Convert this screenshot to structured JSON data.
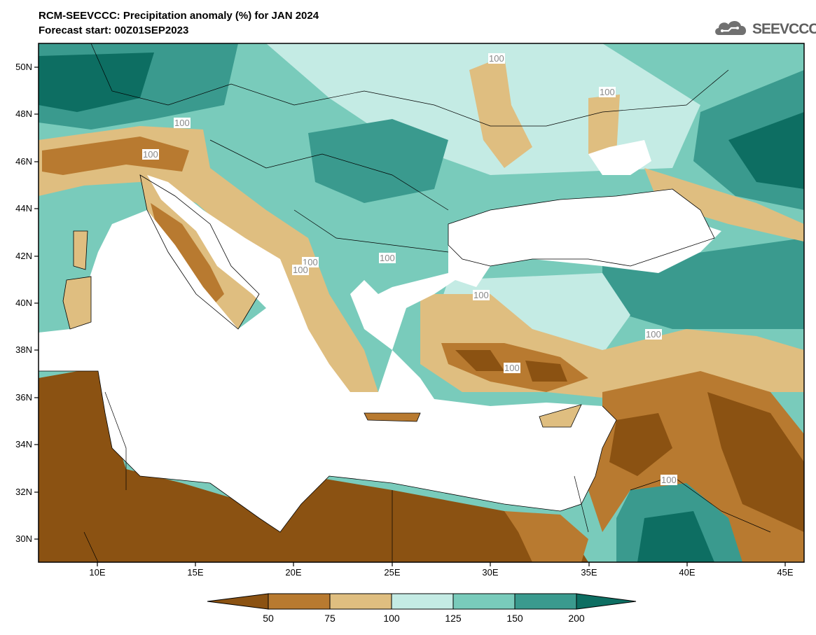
{
  "header": {
    "line1": "RCM-SEEVCCC: Precipitation anomaly (%) for JAN 2024",
    "line2": "Forecast start: 00Z01SEP2023"
  },
  "logo": {
    "text": "SEEVCCC",
    "icon": "cloud-logo-icon"
  },
  "map": {
    "lat_labels": [
      "50N",
      "48N",
      "46N",
      "44N",
      "42N",
      "40N",
      "38N",
      "36N",
      "34N",
      "32N",
      "30N"
    ],
    "lon_labels": [
      "10E",
      "15E",
      "20E",
      "25E",
      "30E",
      "35E",
      "40E",
      "45E"
    ],
    "contour_labels": [
      "100",
      "100",
      "100",
      "100",
      "100",
      "100",
      "100",
      "100",
      "100",
      "100",
      "100",
      "100"
    ]
  },
  "colorbar": {
    "ticks": [
      "50",
      "75",
      "100",
      "125",
      "150",
      "200"
    ],
    "colors": [
      "#8b5212",
      "#b87a30",
      "#dfbe80",
      "#c4ebe4",
      "#79cbbb",
      "#3a9a8e",
      "#0d6e62"
    ]
  },
  "colors": {
    "very_dry": "#8b5212",
    "dry": "#b87a30",
    "slightly_dry": "#dfbe80",
    "slightly_wet": "#c4ebe4",
    "wet": "#79cbbb",
    "very_wet": "#3a9a8e",
    "extremely_wet": "#0d6e62",
    "sea": "#ffffff"
  }
}
